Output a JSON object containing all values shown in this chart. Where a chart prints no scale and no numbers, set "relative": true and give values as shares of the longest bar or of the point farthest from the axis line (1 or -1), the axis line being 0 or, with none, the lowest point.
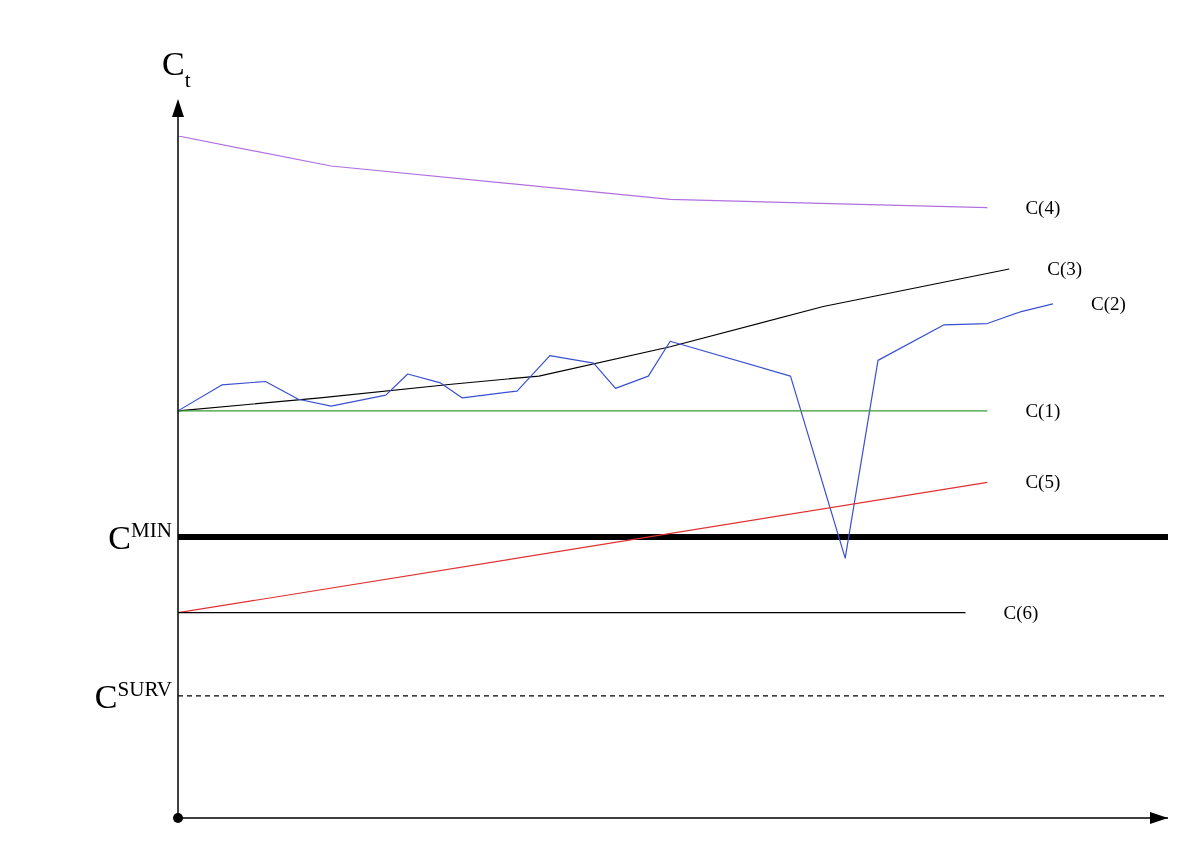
{
  "chart_data": {
    "type": "line",
    "relative": true,
    "ylabel": "C$_{t}$",
    "categories": [
      null,
      null,
      null,
      null,
      null,
      null,
      null,
      null,
      null,
      null,
      null,
      null,
      null,
      null,
      null,
      null,
      null,
      null,
      null,
      null,
      null,
      null,
      null,
      null,
      null,
      null,
      null,
      null,
      null,
      null,
      null,
      null,
      null,
      null,
      null,
      null,
      null,
      null,
      null,
      null,
      null,
      null,
      null,
      null,
      null,
      null,
      null,
      null,
      null,
      null,
      null,
      null,
      null,
      null,
      null,
      null,
      null,
      null,
      null,
      null,
      null,
      null,
      null,
      null,
      null,
      null,
      null,
      null,
      null,
      null,
      null,
      null,
      null,
      null,
      null,
      null,
      null,
      null,
      null,
      null,
      null
    ],
    "series": [
      {
        "name": "C(4)",
        "color": "#b070e0",
        "values": [
          1.0,
          null,
          null,
          null,
          null,
          null,
          null,
          null,
          null,
          null,
          null,
          null,
          null,
          null,
          0.956,
          null,
          null,
          null,
          null,
          null,
          null,
          null,
          null,
          null,
          null,
          null,
          null,
          null,
          null,
          null,
          null,
          null,
          null,
          null,
          null,
          null,
          null,
          null,
          null,
          null,
          null,
          null,
          null,
          null,
          null,
          0.907,
          null,
          null,
          null,
          null,
          null,
          null,
          null,
          null,
          null,
          null,
          null,
          null,
          null,
          null,
          null,
          null,
          null,
          null,
          null,
          null,
          null,
          null,
          null,
          null,
          null,
          null,
          null,
          null,
          0.895,
          null,
          null,
          null,
          null,
          null,
          null
        ]
      },
      {
        "name": "C(3)",
        "color": "#000000",
        "values": [
          0.597,
          null,
          null,
          null,
          null,
          null,
          null,
          null,
          null,
          null,
          null,
          null,
          null,
          0.616,
          null,
          null,
          null,
          null,
          null,
          null,
          null,
          null,
          null,
          null,
          null,
          0.636,
          null,
          null,
          null,
          null,
          null,
          null,
          null,
          0.648,
          null,
          null,
          null,
          null,
          null,
          null,
          null,
          null,
          null,
          null,
          null,
          0.691,
          null,
          null,
          null,
          null,
          null,
          null,
          null,
          null,
          null,
          null,
          null,
          null,
          null,
          0.75,
          null,
          null,
          null,
          null,
          null,
          null,
          null,
          null,
          null,
          null,
          null,
          null,
          null,
          null,
          null,
          null,
          0.805,
          null,
          null,
          null,
          null
        ]
      },
      {
        "name": "C(2)",
        "color": "#3a50d0",
        "values": [
          0.597,
          null,
          null,
          null,
          0.635,
          null,
          null,
          null,
          0.64,
          null,
          null,
          0.614,
          null,
          null,
          0.604,
          null,
          null,
          null,
          null,
          0.62,
          null,
          0.651,
          null,
          null,
          0.638,
          null,
          0.616,
          null,
          null,
          null,
          null,
          0.626,
          null,
          null,
          0.678,
          null,
          null,
          null,
          0.667,
          null,
          0.63,
          null,
          null,
          0.648,
          null,
          0.699,
          null,
          null,
          null,
          null,
          null,
          null,
          null,
          null,
          null,
          null,
          0.648,
          null,
          null,
          null,
          null,
          0.381,
          null,
          null,
          0.671,
          null,
          null,
          null,
          null,
          null,
          0.723,
          null,
          null,
          null,
          0.725,
          null,
          null,
          0.742,
          null,
          null,
          0.754
        ]
      },
      {
        "name": "C(1)",
        "color": "#3a9a3a",
        "values": [
          0.597,
          null,
          null,
          null,
          null,
          null,
          null,
          null,
          null,
          null,
          null,
          null,
          null,
          null,
          null,
          null,
          null,
          null,
          null,
          null,
          null,
          null,
          null,
          null,
          null,
          null,
          null,
          null,
          null,
          null,
          null,
          null,
          null,
          null,
          null,
          null,
          null,
          null,
          null,
          null,
          null,
          null,
          null,
          null,
          null,
          null,
          null,
          null,
          null,
          null,
          null,
          null,
          null,
          null,
          null,
          null,
          null,
          null,
          null,
          null,
          null,
          null,
          null,
          null,
          null,
          null,
          null,
          null,
          null,
          null,
          null,
          null,
          null,
          null,
          0.597,
          null,
          null,
          null,
          null,
          null,
          null
        ]
      },
      {
        "name": "C(5)",
        "color": "#e03030",
        "values": [
          0.301,
          null,
          null,
          null,
          null,
          null,
          null,
          null,
          null,
          null,
          null,
          null,
          null,
          null,
          null,
          null,
          null,
          null,
          null,
          null,
          null,
          null,
          null,
          null,
          null,
          null,
          null,
          null,
          null,
          null,
          null,
          null,
          null,
          null,
          null,
          null,
          null,
          null,
          null,
          null,
          null,
          null,
          null,
          null,
          null,
          null,
          null,
          null,
          null,
          null,
          null,
          null,
          null,
          null,
          null,
          null,
          null,
          null,
          null,
          null,
          null,
          null,
          null,
          null,
          null,
          null,
          null,
          null,
          null,
          null,
          null,
          null,
          null,
          null,
          0.492,
          null,
          null,
          null,
          null,
          null,
          null
        ]
      },
      {
        "name": "C(6)",
        "color": "#000000",
        "values": [
          0.301,
          null,
          null,
          null,
          null,
          null,
          null,
          null,
          null,
          null,
          null,
          null,
          null,
          null,
          null,
          null,
          null,
          null,
          null,
          null,
          null,
          null,
          null,
          null,
          null,
          null,
          null,
          null,
          null,
          null,
          null,
          null,
          null,
          null,
          null,
          null,
          null,
          null,
          null,
          null,
          null,
          null,
          null,
          null,
          null,
          null,
          null,
          null,
          null,
          null,
          null,
          null,
          null,
          null,
          null,
          null,
          null,
          null,
          null,
          null,
          null,
          null,
          null,
          null,
          null,
          null,
          null,
          null,
          null,
          null,
          null,
          null,
          0.301,
          null,
          null,
          null,
          null,
          null,
          null,
          null,
          null
        ]
      }
    ],
    "ref_lines": [
      {
        "axis": "y",
        "value": 0.412,
        "label": "C$^{MIN}$",
        "color": "#000000",
        "line_style": "solid"
      },
      {
        "axis": "y",
        "value": 0.179,
        "label": "C$^{SURV}$",
        "color": "#000000",
        "line_style": "dashed"
      }
    ],
    "legend": false,
    "grid": false,
    "marker": "none",
    "line_style": "solid"
  }
}
